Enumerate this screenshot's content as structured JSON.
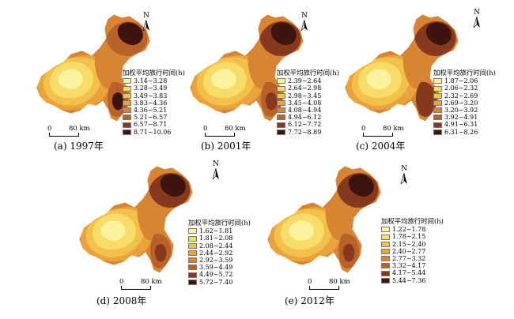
{
  "north_label": "N",
  "scale": {
    "zero": "0",
    "distance": "80 km"
  },
  "legend_title": "加权平均旅行时间(h)",
  "panels": [
    {
      "caption": "(a) 1997年",
      "legend": [
        "3.14~3.28",
        "3.28~3.49",
        "3.49~3.83",
        "3.83~4.36",
        "4.36~5.21",
        "5.21~6.57",
        "6.57~8.71",
        "8.71~10.06"
      ]
    },
    {
      "caption": "(b) 2001年",
      "legend": [
        "2.39~2.64",
        "2.64~2.98",
        "2.98~3.45",
        "3.45~4.08",
        "4.08~4.94",
        "4.94~6.12",
        "6.12~7.72",
        "7.72~8.89"
      ]
    },
    {
      "caption": "(c) 2004年",
      "legend": [
        "1.87~2.06",
        "2.06~2.32",
        "2.32~2.69",
        "2.69~3.20",
        "3.20~3.92",
        "3.92~4.91",
        "4.91~6.31",
        "6.31~8.26"
      ]
    },
    {
      "caption": "(d) 2008年",
      "legend": [
        "1.62~1.81",
        "1.81~2.08",
        "2.08~2.44",
        "2.44~2.92",
        "2.92~3.59",
        "3.59~4.49",
        "4.49~5.72",
        "5.72~7.40"
      ]
    },
    {
      "caption": "(e) 2012年",
      "legend": [
        "1.22~1.78",
        "1.78~2.15",
        "2.15~2.40",
        "2.40~2.77",
        "2.77~3.32",
        "3.32~4.17",
        "4.17~5.44",
        "5.44~7.36"
      ]
    }
  ],
  "colors": [
    "#fbf3a0",
    "#f8dc6a",
    "#f3c04a",
    "#e9a23c",
    "#d78434",
    "#b8622a",
    "#86391e",
    "#3d1410"
  ]
}
